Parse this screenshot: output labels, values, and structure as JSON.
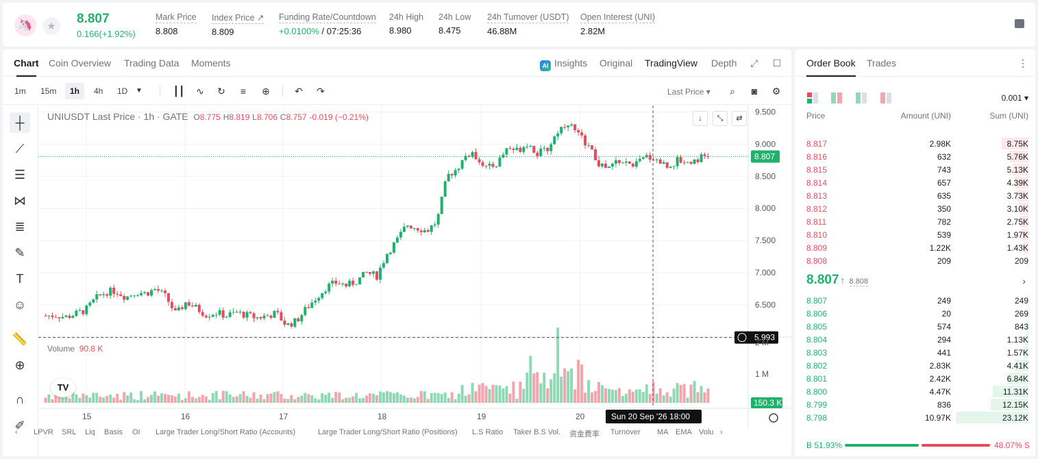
{
  "colors": {
    "up": "#20b26c",
    "down": "#e74c5e"
  },
  "header": {
    "price": "8.807",
    "change": "0.166(+1.92%)",
    "stats": [
      {
        "label": "Mark Price",
        "value": "8.808"
      },
      {
        "label": "Index Price ↗",
        "value": "8.809"
      },
      {
        "label": "Funding Rate/Countdown",
        "value_green": "+0.0100%",
        "value": " / 07:25:36"
      },
      {
        "label": "24h High",
        "value": "8.980"
      },
      {
        "label": "24h Low",
        "value": "8.475"
      },
      {
        "label": "24h Turnover (USDT)",
        "value": "46.88M"
      },
      {
        "label": "Open Interest (UNI)",
        "value": "2.82M"
      }
    ]
  },
  "chart_tabs": [
    "Chart",
    "Coin Overview",
    "Trading Data",
    "Moments"
  ],
  "view_tabs": {
    "insights": "Insights",
    "original": "Original",
    "tradingview": "TradingView",
    "depth": "Depth"
  },
  "timeframes": [
    "1m",
    "15m",
    "1h",
    "4h",
    "1D"
  ],
  "price_type": "Last Price ▾",
  "legend": {
    "symbol": "UNIUSDT Last Price · 1h · GATE",
    "o": "8.775",
    "h": "8.819",
    "l": "8.706",
    "c": "8.757",
    "chg": "-0.019 (−0.21%)"
  },
  "volume_legend": {
    "label": "Volume",
    "value": "90.8 K"
  },
  "chart_data": {
    "type": "candlestick",
    "y_ticks": [
      "9.500",
      "9.000",
      "8.500",
      "8.000",
      "7.500",
      "7.000",
      "6.500"
    ],
    "y_range": [
      6.0,
      9.6
    ],
    "x_ticks": [
      "15",
      "16",
      "17",
      "18",
      "19",
      "20"
    ],
    "current_price_label": "8.807",
    "crosshair_price_label": "5.993",
    "crosshair_time_label": "Sun 20 Sep '26   18:00",
    "volume_ticks": [
      "2 M",
      "1 M"
    ],
    "volume_current_label": "150.3 K",
    "close_path": [
      6.33,
      6.34,
      6.31,
      6.36,
      6.42,
      6.6,
      6.7,
      6.72,
      6.62,
      6.7,
      6.68,
      6.75,
      6.62,
      6.35,
      6.55,
      6.45,
      6.35,
      6.38,
      6.33,
      6.38,
      6.34,
      6.3,
      6.33,
      6.37,
      6.18,
      6.25,
      6.45,
      6.62,
      6.78,
      6.85,
      6.8,
      6.87,
      7.0,
      6.95,
      7.3,
      7.5,
      7.75,
      7.7,
      7.65,
      7.8,
      8.5,
      8.62,
      8.85,
      8.8,
      8.62,
      8.7,
      8.95,
      8.9,
      9.02,
      8.85,
      8.92,
      9.2,
      9.35,
      9.15,
      9.0,
      8.7,
      8.6,
      8.75,
      8.68,
      8.7,
      8.82,
      8.75,
      8.65,
      8.75,
      8.72,
      8.78,
      8.81
    ]
  },
  "bottom_indicators": [
    "LPVR",
    "SRL",
    "Liq",
    "Basis",
    "OI",
    "Large Trader Long/Short Ratio (Accounts)",
    "Large Trader Long/Short Ratio (Positions)",
    "L.S Ratio",
    "Taker B.S Vol.",
    "资金费率",
    "Turnover",
    "MA",
    "EMA",
    "Volu"
  ],
  "orderbook": {
    "tabs": [
      "Order Book",
      "Trades"
    ],
    "precision": "0.001 ▾",
    "headers": {
      "price": "Price",
      "amount": "Amount (UNI)",
      "sum": "Sum (UNI)"
    },
    "asks": [
      {
        "p": "8.817",
        "a": "2.98K",
        "s": "8.75K",
        "depth": 0.37
      },
      {
        "p": "8.816",
        "a": "632",
        "s": "5.76K",
        "depth": 0.25
      },
      {
        "p": "8.815",
        "a": "743",
        "s": "5.13K",
        "depth": 0.22
      },
      {
        "p": "8.814",
        "a": "657",
        "s": "4.39K",
        "depth": 0.19
      },
      {
        "p": "8.813",
        "a": "635",
        "s": "3.73K",
        "depth": 0.16
      },
      {
        "p": "8.812",
        "a": "350",
        "s": "3.10K",
        "depth": 0.13
      },
      {
        "p": "8.811",
        "a": "782",
        "s": "2.75K",
        "depth": 0.12
      },
      {
        "p": "8.810",
        "a": "539",
        "s": "1.97K",
        "depth": 0.09
      },
      {
        "p": "8.809",
        "a": "1.22K",
        "s": "1.43K",
        "depth": 0.06
      },
      {
        "p": "8.808",
        "a": "209",
        "s": "209",
        "depth": 0.01
      }
    ],
    "mid_price": "8.807",
    "mark_price": "8.808",
    "bids": [
      {
        "p": "8.807",
        "a": "249",
        "s": "249",
        "depth": 0.01
      },
      {
        "p": "8.806",
        "a": "20",
        "s": "269",
        "depth": 0.01
      },
      {
        "p": "8.805",
        "a": "574",
        "s": "843",
        "depth": 0.04
      },
      {
        "p": "8.804",
        "a": "294",
        "s": "1.13K",
        "depth": 0.05
      },
      {
        "p": "8.803",
        "a": "441",
        "s": "1.57K",
        "depth": 0.07
      },
      {
        "p": "8.802",
        "a": "2.83K",
        "s": "4.41K",
        "depth": 0.19
      },
      {
        "p": "8.801",
        "a": "2.42K",
        "s": "6.84K",
        "depth": 0.29
      },
      {
        "p": "8.800",
        "a": "4.47K",
        "s": "11.31K",
        "depth": 0.49
      },
      {
        "p": "8.799",
        "a": "836",
        "s": "12.15K",
        "depth": 0.52
      },
      {
        "p": "8.798",
        "a": "10.97K",
        "s": "23.12K",
        "depth": 1.0
      }
    ],
    "buy_ratio": "B 51.93%",
    "sell_ratio": "48.07% S"
  }
}
